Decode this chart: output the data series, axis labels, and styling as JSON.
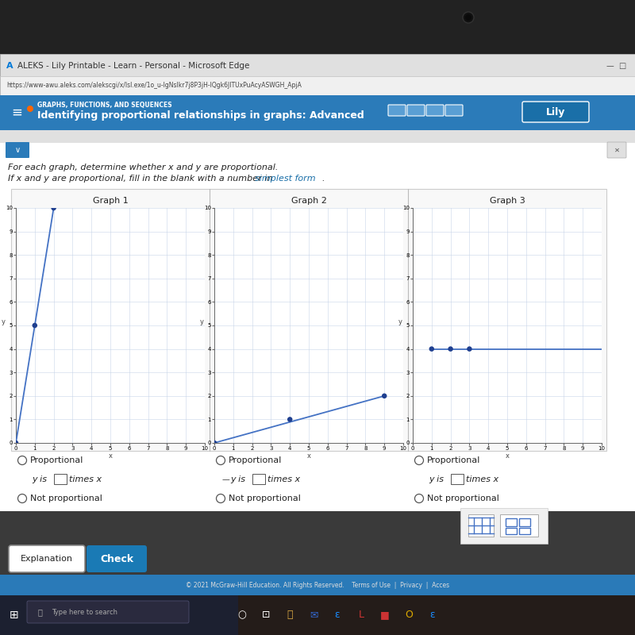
{
  "browser_title": "ALEKS - Lily Printable - Learn - Personal - Microsoft Edge",
  "url": "https://www-awu.aleks.com/alekscgi/x/lsl.exe/1o_u-lgNslkr7j8P3jH-lQgk6JITUxPuAcyASWGH_ApjAQHcF25VHHv5kc_CK5RpJb8w9E",
  "header_label": "GRAPHS, FUNCTIONS, AND SEQUENCES",
  "header_title": "Identifying proportional relationships in graphs: Advanced",
  "header_right": "Lily",
  "instruction_line1": "For each graph, determine whether x and y are proportional.",
  "instruction_line2": "If x and y are proportional, fill in the blank with a number in simplest form.",
  "graph1_title": "Graph 1",
  "graph1_points": [
    [
      0,
      0
    ],
    [
      1,
      5
    ],
    [
      2,
      10
    ]
  ],
  "graph1_line": [
    [
      0,
      0
    ],
    [
      2,
      10
    ]
  ],
  "graph2_title": "Graph 2",
  "graph2_points": [
    [
      0,
      0
    ],
    [
      4,
      1
    ],
    [
      9,
      2
    ]
  ],
  "graph2_line": [
    [
      0,
      0
    ],
    [
      9,
      2
    ]
  ],
  "graph3_title": "Graph 3",
  "graph3_points": [
    [
      1,
      4
    ],
    [
      2,
      4
    ],
    [
      3,
      4
    ]
  ],
  "graph3_line": [
    [
      1,
      4
    ],
    [
      10,
      4
    ]
  ],
  "xlim": [
    0,
    10
  ],
  "ylim": [
    0,
    10
  ],
  "line_color": "#4472c4",
  "point_color": "#1f3f8f",
  "grid_color": "#c8d4e8",
  "outer_bg": "#3a3a3a",
  "laptop_bezel": "#1a1a1a",
  "browser_bg": "#e8e8e8",
  "url_bg": "#f5f5f5",
  "header_color": "#2b7bb9",
  "page_bg": "#ffffff",
  "content_bg": "#f0f0f0",
  "option1_text": "Proportional",
  "option2_text": "Not proportional",
  "blank_label": "y is",
  "blank_suffix": "times x",
  "check_color": "#1a7ab5",
  "bottom_strip_color": "#2b7bb9",
  "taskbar_color": "#1e1e2e",
  "copyright_text": "© 2021 McGraw-Hill Education. All Rights Reserved.",
  "links_text": "Terms of Use  |  Privacy  |  Acces"
}
